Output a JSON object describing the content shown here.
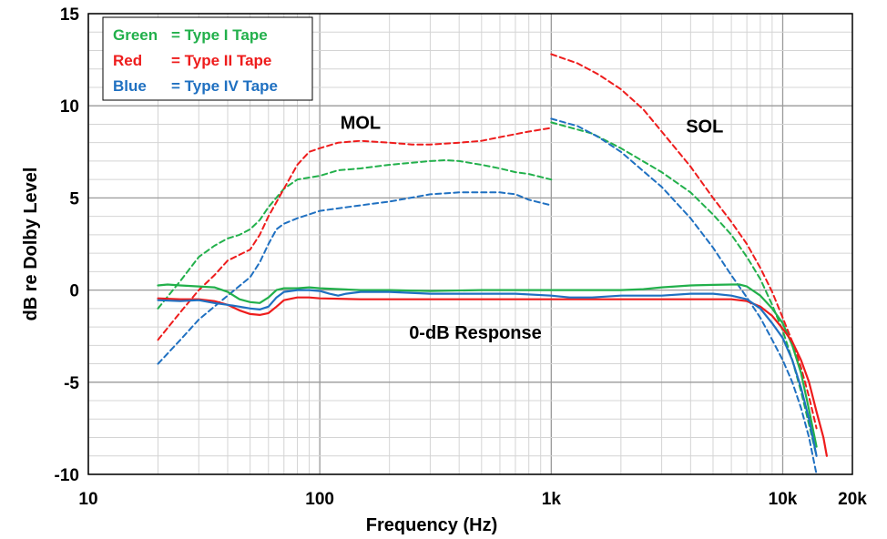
{
  "chart_data": {
    "type": "line",
    "xlabel": "Frequency (Hz)",
    "ylabel": "dB re Dolby Level",
    "x_scale": "log",
    "xlim": [
      10,
      20000
    ],
    "ylim": [
      -10,
      15
    ],
    "x_ticks": [
      {
        "value": 10,
        "label": "10"
      },
      {
        "value": 100,
        "label": "100"
      },
      {
        "value": 1000,
        "label": "1k"
      },
      {
        "value": 10000,
        "label": "10k"
      },
      {
        "value": 20000,
        "label": "20k"
      }
    ],
    "y_ticks": [
      {
        "value": -10,
        "label": "-10"
      },
      {
        "value": -5,
        "label": "-5"
      },
      {
        "value": 0,
        "label": "0"
      },
      {
        "value": 5,
        "label": "5"
      },
      {
        "value": 10,
        "label": "10"
      },
      {
        "value": 15,
        "label": "15"
      }
    ],
    "grid": true,
    "legend": {
      "placement": "top-left",
      "entries": [
        {
          "label": "Green",
          "desc": "= Type I Tape",
          "color": "#22b04b"
        },
        {
          "label": "Red",
          "desc": "= Type II Tape",
          "color": "#ee1c1c"
        },
        {
          "label": "Blue",
          "desc": "= Type IV Tape",
          "color": "#1f70c1"
        }
      ]
    },
    "annotations": [
      {
        "text": "MOL",
        "x": 150,
        "y": 9.1
      },
      {
        "text": "SOL",
        "x": 4600,
        "y": 8.9
      },
      {
        "text": "0-dB Response",
        "x": 470,
        "y": -2.3
      }
    ],
    "series": [
      {
        "tape": "Type I",
        "curve": "MOL",
        "color": "#22b04b",
        "style": "dashed",
        "points": [
          [
            20,
            -1
          ],
          [
            25,
            0.5
          ],
          [
            30,
            1.8
          ],
          [
            35,
            2.4
          ],
          [
            40,
            2.8
          ],
          [
            45,
            3
          ],
          [
            50,
            3.3
          ],
          [
            55,
            3.8
          ],
          [
            60,
            4.5
          ],
          [
            70,
            5.5
          ],
          [
            80,
            6
          ],
          [
            100,
            6.2
          ],
          [
            120,
            6.5
          ],
          [
            150,
            6.6
          ],
          [
            200,
            6.8
          ],
          [
            300,
            7
          ],
          [
            350,
            7.05
          ],
          [
            400,
            7
          ],
          [
            500,
            6.8
          ],
          [
            600,
            6.6
          ],
          [
            700,
            6.4
          ],
          [
            800,
            6.3
          ],
          [
            1000,
            6
          ]
        ]
      },
      {
        "tape": "Type II",
        "curve": "MOL",
        "color": "#ee1c1c",
        "style": "dashed",
        "points": [
          [
            20,
            -2.7
          ],
          [
            25,
            -1.2
          ],
          [
            30,
            0
          ],
          [
            35,
            0.8
          ],
          [
            40,
            1.6
          ],
          [
            50,
            2.2
          ],
          [
            55,
            3
          ],
          [
            60,
            4
          ],
          [
            70,
            5.5
          ],
          [
            80,
            6.8
          ],
          [
            90,
            7.5
          ],
          [
            100,
            7.7
          ],
          [
            120,
            8
          ],
          [
            150,
            8.1
          ],
          [
            200,
            8
          ],
          [
            250,
            7.9
          ],
          [
            300,
            7.9
          ],
          [
            400,
            8
          ],
          [
            500,
            8.1
          ],
          [
            600,
            8.3
          ],
          [
            800,
            8.6
          ],
          [
            1000,
            8.8
          ]
        ]
      },
      {
        "tape": "Type IV",
        "curve": "MOL",
        "color": "#1f70c1",
        "style": "dashed",
        "points": [
          [
            20,
            -4
          ],
          [
            25,
            -2.7
          ],
          [
            30,
            -1.6
          ],
          [
            35,
            -0.9
          ],
          [
            40,
            -0.3
          ],
          [
            50,
            0.7
          ],
          [
            55,
            1.5
          ],
          [
            60,
            2.5
          ],
          [
            65,
            3.3
          ],
          [
            70,
            3.6
          ],
          [
            80,
            3.9
          ],
          [
            100,
            4.3
          ],
          [
            150,
            4.6
          ],
          [
            200,
            4.8
          ],
          [
            300,
            5.2
          ],
          [
            400,
            5.3
          ],
          [
            500,
            5.3
          ],
          [
            600,
            5.3
          ],
          [
            700,
            5.2
          ],
          [
            800,
            4.9
          ],
          [
            1000,
            4.6
          ]
        ]
      },
      {
        "tape": "Type I",
        "curve": "SOL",
        "color": "#22b04b",
        "style": "dashed",
        "points": [
          [
            1000,
            9.1
          ],
          [
            1500,
            8.5
          ],
          [
            2000,
            7.7
          ],
          [
            3000,
            6.4
          ],
          [
            4000,
            5.3
          ],
          [
            5000,
            4.1
          ],
          [
            6000,
            3
          ],
          [
            7000,
            1.8
          ],
          [
            8000,
            0.6
          ],
          [
            9000,
            -0.8
          ],
          [
            10000,
            -2.2
          ],
          [
            11000,
            -3.8
          ],
          [
            12000,
            -5.5
          ],
          [
            13000,
            -7.3
          ],
          [
            14000,
            -9
          ]
        ]
      },
      {
        "tape": "Type II",
        "curve": "SOL",
        "color": "#ee1c1c",
        "style": "dashed",
        "points": [
          [
            1000,
            12.8
          ],
          [
            1300,
            12.3
          ],
          [
            1600,
            11.7
          ],
          [
            2000,
            10.9
          ],
          [
            2500,
            9.8
          ],
          [
            3000,
            8.6
          ],
          [
            4000,
            6.7
          ],
          [
            5000,
            5
          ],
          [
            6000,
            3.7
          ],
          [
            7000,
            2.5
          ],
          [
            8000,
            1.2
          ],
          [
            9000,
            -0.1
          ],
          [
            10000,
            -1.5
          ],
          [
            11000,
            -2.8
          ],
          [
            12000,
            -4.2
          ],
          [
            13000,
            -5.8
          ],
          [
            14000,
            -7.5
          ]
        ]
      },
      {
        "tape": "Type IV",
        "curve": "SOL",
        "color": "#1f70c1",
        "style": "dashed",
        "points": [
          [
            1000,
            9.3
          ],
          [
            1300,
            8.9
          ],
          [
            1600,
            8.3
          ],
          [
            2000,
            7.5
          ],
          [
            3000,
            5.6
          ],
          [
            4000,
            3.9
          ],
          [
            5000,
            2.3
          ],
          [
            6000,
            0.8
          ],
          [
            7000,
            -0.4
          ],
          [
            8000,
            -1.5
          ],
          [
            9000,
            -2.7
          ],
          [
            10000,
            -3.8
          ],
          [
            11000,
            -5
          ],
          [
            12000,
            -6.4
          ],
          [
            13000,
            -8
          ],
          [
            14000,
            -10
          ]
        ]
      },
      {
        "tape": "Type I",
        "curve": "0-dB Response",
        "color": "#22b04b",
        "style": "solid",
        "points": [
          [
            20,
            0.25
          ],
          [
            22,
            0.3
          ],
          [
            25,
            0.25
          ],
          [
            30,
            0.2
          ],
          [
            35,
            0.15
          ],
          [
            40,
            -0.1
          ],
          [
            45,
            -0.5
          ],
          [
            50,
            -0.65
          ],
          [
            55,
            -0.7
          ],
          [
            60,
            -0.4
          ],
          [
            65,
            0
          ],
          [
            70,
            0.1
          ],
          [
            80,
            0.1
          ],
          [
            90,
            0.15
          ],
          [
            100,
            0.1
          ],
          [
            150,
            0
          ],
          [
            200,
            0
          ],
          [
            300,
            -0.05
          ],
          [
            500,
            0
          ],
          [
            700,
            0
          ],
          [
            1000,
            0
          ],
          [
            1500,
            0
          ],
          [
            2000,
            0
          ],
          [
            2500,
            0.05
          ],
          [
            3000,
            0.15
          ],
          [
            4000,
            0.25
          ],
          [
            5000,
            0.28
          ],
          [
            6000,
            0.3
          ],
          [
            6500,
            0.3
          ],
          [
            7000,
            0.2
          ],
          [
            8000,
            -0.3
          ],
          [
            9000,
            -1
          ],
          [
            10000,
            -1.8
          ],
          [
            11000,
            -3
          ],
          [
            12000,
            -4.5
          ],
          [
            13000,
            -6.5
          ],
          [
            14000,
            -8.5
          ]
        ]
      },
      {
        "tape": "Type II",
        "curve": "0-dB Response",
        "color": "#ee1c1c",
        "style": "solid",
        "points": [
          [
            20,
            -0.45
          ],
          [
            25,
            -0.5
          ],
          [
            30,
            -0.5
          ],
          [
            35,
            -0.6
          ],
          [
            40,
            -0.8
          ],
          [
            45,
            -1.1
          ],
          [
            50,
            -1.3
          ],
          [
            55,
            -1.35
          ],
          [
            60,
            -1.25
          ],
          [
            65,
            -0.9
          ],
          [
            70,
            -0.55
          ],
          [
            80,
            -0.4
          ],
          [
            90,
            -0.4
          ],
          [
            100,
            -0.45
          ],
          [
            150,
            -0.5
          ],
          [
            200,
            -0.5
          ],
          [
            500,
            -0.5
          ],
          [
            1000,
            -0.5
          ],
          [
            2000,
            -0.5
          ],
          [
            3000,
            -0.5
          ],
          [
            4000,
            -0.5
          ],
          [
            5000,
            -0.5
          ],
          [
            6000,
            -0.5
          ],
          [
            7000,
            -0.6
          ],
          [
            8000,
            -0.9
          ],
          [
            9000,
            -1.4
          ],
          [
            10000,
            -2.1
          ],
          [
            11000,
            -2.8
          ],
          [
            12000,
            -3.8
          ],
          [
            13000,
            -5
          ],
          [
            14000,
            -6.6
          ],
          [
            15000,
            -8
          ],
          [
            15500,
            -9
          ]
        ]
      },
      {
        "tape": "Type IV",
        "curve": "0-dB Response",
        "color": "#1f70c1",
        "style": "solid",
        "points": [
          [
            20,
            -0.55
          ],
          [
            25,
            -0.6
          ],
          [
            30,
            -0.55
          ],
          [
            35,
            -0.7
          ],
          [
            40,
            -0.8
          ],
          [
            45,
            -0.9
          ],
          [
            50,
            -1
          ],
          [
            55,
            -1.05
          ],
          [
            60,
            -0.9
          ],
          [
            65,
            -0.4
          ],
          [
            70,
            -0.1
          ],
          [
            80,
            0
          ],
          [
            90,
            0
          ],
          [
            100,
            -0.05
          ],
          [
            110,
            -0.2
          ],
          [
            120,
            -0.3
          ],
          [
            130,
            -0.2
          ],
          [
            150,
            -0.1
          ],
          [
            200,
            -0.1
          ],
          [
            300,
            -0.2
          ],
          [
            500,
            -0.2
          ],
          [
            700,
            -0.2
          ],
          [
            1000,
            -0.3
          ],
          [
            1200,
            -0.4
          ],
          [
            1500,
            -0.4
          ],
          [
            2000,
            -0.3
          ],
          [
            3000,
            -0.3
          ],
          [
            4000,
            -0.2
          ],
          [
            5000,
            -0.2
          ],
          [
            6000,
            -0.3
          ],
          [
            7000,
            -0.5
          ],
          [
            8000,
            -1
          ],
          [
            9000,
            -1.8
          ],
          [
            10000,
            -2.6
          ],
          [
            11000,
            -3.8
          ],
          [
            12000,
            -5.3
          ],
          [
            13000,
            -7
          ],
          [
            14000,
            -9
          ]
        ]
      }
    ]
  }
}
